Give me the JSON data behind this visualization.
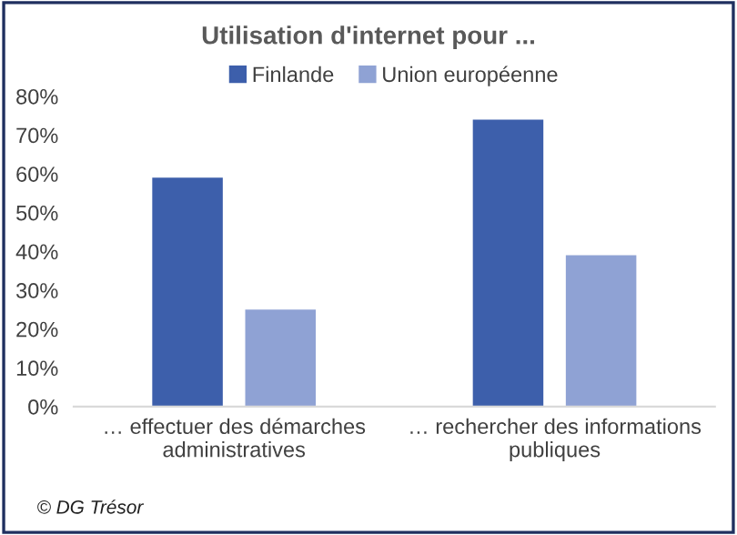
{
  "chart_data": {
    "type": "bar",
    "title": "Utilisation d'internet pour ...",
    "categories": [
      "… effectuer des démarches administratives",
      "… rechercher des informations publiques"
    ],
    "series": [
      {
        "name": "Finlande",
        "color": "#3d5fab",
        "values": [
          59,
          74
        ]
      },
      {
        "name": "Union européenne",
        "color": "#8fa2d4",
        "values": [
          25,
          39
        ]
      }
    ],
    "ylim": [
      0,
      80
    ],
    "yticks": [
      {
        "value": 0,
        "label": "0%"
      },
      {
        "value": 10,
        "label": "10%"
      },
      {
        "value": 20,
        "label": "20%"
      },
      {
        "value": 30,
        "label": "30%"
      },
      {
        "value": 40,
        "label": "40%"
      },
      {
        "value": 50,
        "label": "50%"
      },
      {
        "value": 60,
        "label": "60%"
      },
      {
        "value": 70,
        "label": "70%"
      },
      {
        "value": 80,
        "label": "80%"
      }
    ],
    "grid": false,
    "legend": "top",
    "annotations": [
      "© DG Trésor"
    ]
  }
}
